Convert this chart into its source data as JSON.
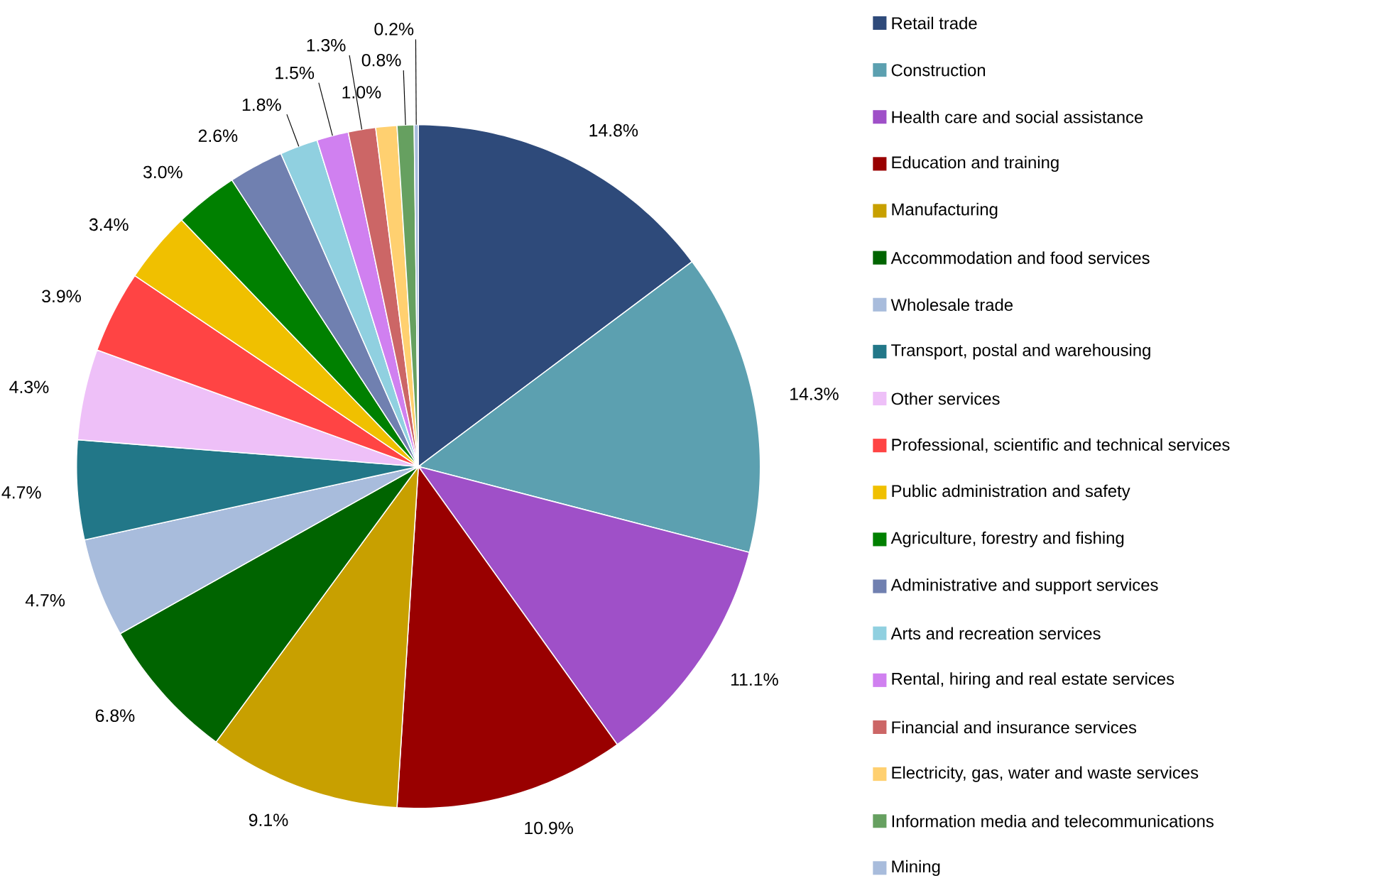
{
  "chart_data": {
    "type": "pie",
    "categories": [
      "Retail trade",
      "Construction",
      "Health care and social assistance",
      "Education and training",
      "Manufacturing",
      "Accommodation and food services",
      "Wholesale trade",
      "Transport, postal and warehousing",
      "Other services",
      "Professional, scientific and technical services",
      "Public administration and safety",
      "Agriculture, forestry and fishing",
      "Administrative and support services",
      "Arts and recreation services",
      "Rental, hiring and real estate services",
      "Financial and insurance services",
      "Electricity, gas, water and waste services",
      "Information media and telecommunications",
      "Mining"
    ],
    "values": [
      14.8,
      14.3,
      11.1,
      10.9,
      9.1,
      6.8,
      4.7,
      4.7,
      4.3,
      3.9,
      3.4,
      3.0,
      2.6,
      1.8,
      1.5,
      1.3,
      1.0,
      0.8,
      0.2
    ],
    "value_labels": [
      "14.8%",
      "14.3%",
      "11.1%",
      "10.9%",
      "9.1%",
      "6.8%",
      "4.7%",
      "4.7%",
      "4.3%",
      "3.9%",
      "3.4%",
      "3.0%",
      "2.6%",
      "1.8%",
      "1.5%",
      "1.3%",
      "1.0%",
      "0.8%",
      "0.2%"
    ],
    "colors": [
      "#2e4a7a",
      "#5ca0b0",
      "#9f50c8",
      "#990000",
      "#c8a000",
      "#006400",
      "#a8bcdc",
      "#227788",
      "#eec0f8",
      "#ff4444",
      "#f0c000",
      "#008000",
      "#7080b0",
      "#90d0e0",
      "#d080f0",
      "#cc6666",
      "#ffd070",
      "#66a060",
      "#a8bcdc"
    ],
    "legend": "right"
  }
}
